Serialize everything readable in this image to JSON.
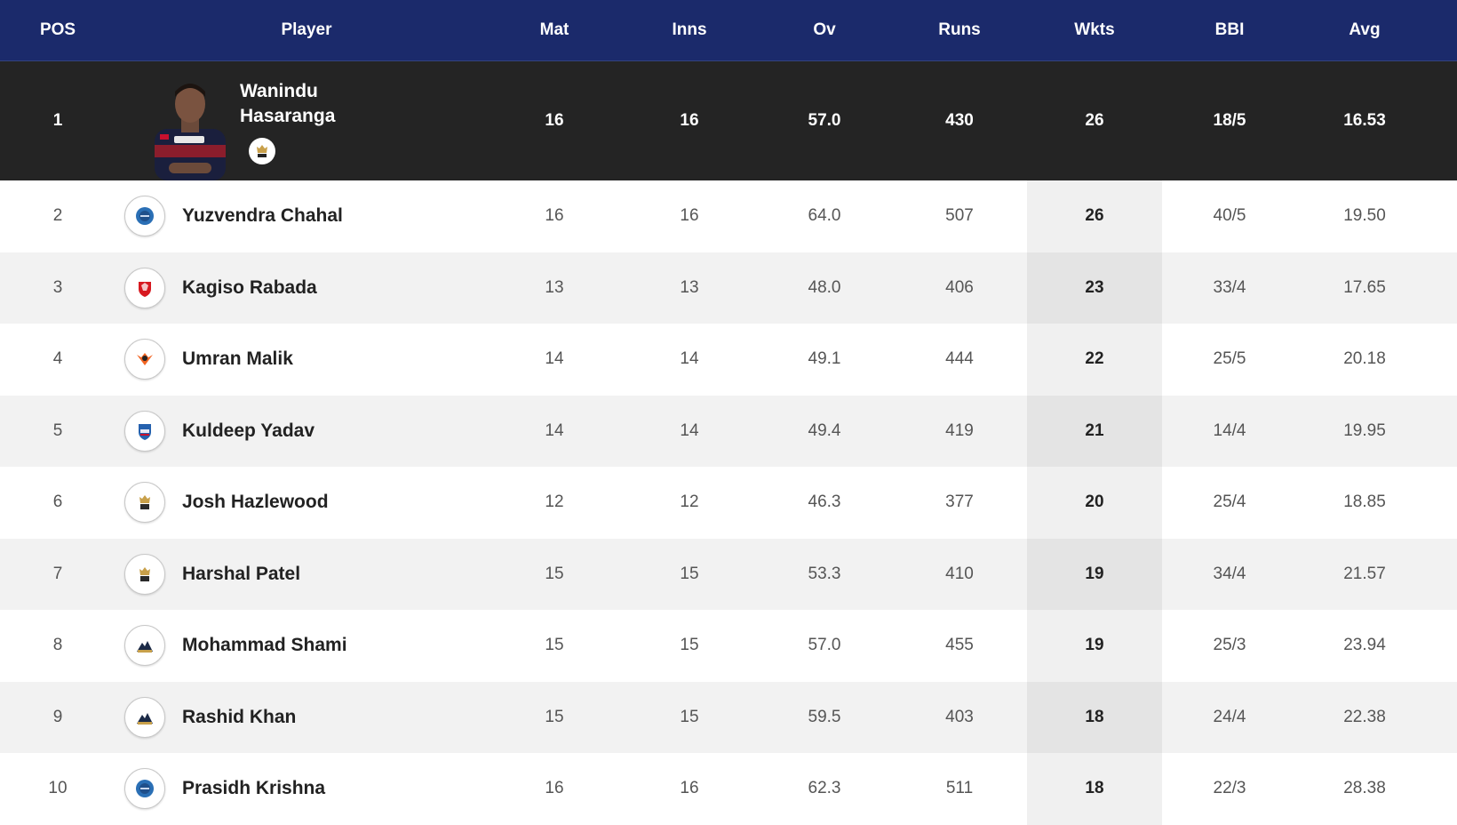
{
  "columns": {
    "pos": "POS",
    "player": "Player",
    "mat": "Mat",
    "inns": "Inns",
    "ov": "Ov",
    "runs": "Runs",
    "wkts": "Wkts",
    "bbi": "BBI",
    "avg": "Avg"
  },
  "colors": {
    "header_bg": "#1b2a6b",
    "leader_bg": "#242424",
    "row_alt_bg": "#f2f2f2"
  },
  "leader": {
    "pos": "1",
    "name_line1": "Wanindu",
    "name_line2": "Hasaranga",
    "team_icon": "rcb-logo-icon",
    "photo_icon": "player-photo",
    "mat": "16",
    "inns": "16",
    "ov": "57.0",
    "runs": "430",
    "wkts": "26",
    "bbi": "18/5",
    "avg": "16.53"
  },
  "rows": [
    {
      "pos": "2",
      "name": "Yuzvendra Chahal",
      "team_icon": "rr-logo-icon",
      "mat": "16",
      "inns": "16",
      "ov": "64.0",
      "runs": "507",
      "wkts": "26",
      "bbi": "40/5",
      "avg": "19.50"
    },
    {
      "pos": "3",
      "name": "Kagiso Rabada",
      "team_icon": "pbks-logo-icon",
      "mat": "13",
      "inns": "13",
      "ov": "48.0",
      "runs": "406",
      "wkts": "23",
      "bbi": "33/4",
      "avg": "17.65"
    },
    {
      "pos": "4",
      "name": "Umran Malik",
      "team_icon": "srh-logo-icon",
      "mat": "14",
      "inns": "14",
      "ov": "49.1",
      "runs": "444",
      "wkts": "22",
      "bbi": "25/5",
      "avg": "20.18"
    },
    {
      "pos": "5",
      "name": "Kuldeep Yadav",
      "team_icon": "dc-logo-icon",
      "mat": "14",
      "inns": "14",
      "ov": "49.4",
      "runs": "419",
      "wkts": "21",
      "bbi": "14/4",
      "avg": "19.95"
    },
    {
      "pos": "6",
      "name": "Josh Hazlewood",
      "team_icon": "rcb-logo-icon",
      "mat": "12",
      "inns": "12",
      "ov": "46.3",
      "runs": "377",
      "wkts": "20",
      "bbi": "25/4",
      "avg": "18.85"
    },
    {
      "pos": "7",
      "name": "Harshal Patel",
      "team_icon": "rcb-logo-icon",
      "mat": "15",
      "inns": "15",
      "ov": "53.3",
      "runs": "410",
      "wkts": "19",
      "bbi": "34/4",
      "avg": "21.57"
    },
    {
      "pos": "8",
      "name": "Mohammad Shami",
      "team_icon": "gt-logo-icon",
      "mat": "15",
      "inns": "15",
      "ov": "57.0",
      "runs": "455",
      "wkts": "19",
      "bbi": "25/3",
      "avg": "23.94"
    },
    {
      "pos": "9",
      "name": "Rashid Khan",
      "team_icon": "gt-logo-icon",
      "mat": "15",
      "inns": "15",
      "ov": "59.5",
      "runs": "403",
      "wkts": "18",
      "bbi": "24/4",
      "avg": "22.38"
    },
    {
      "pos": "10",
      "name": "Prasidh Krishna",
      "team_icon": "rr-logo-icon",
      "mat": "16",
      "inns": "16",
      "ov": "62.3",
      "runs": "511",
      "wkts": "18",
      "bbi": "22/3",
      "avg": "28.38"
    }
  ]
}
